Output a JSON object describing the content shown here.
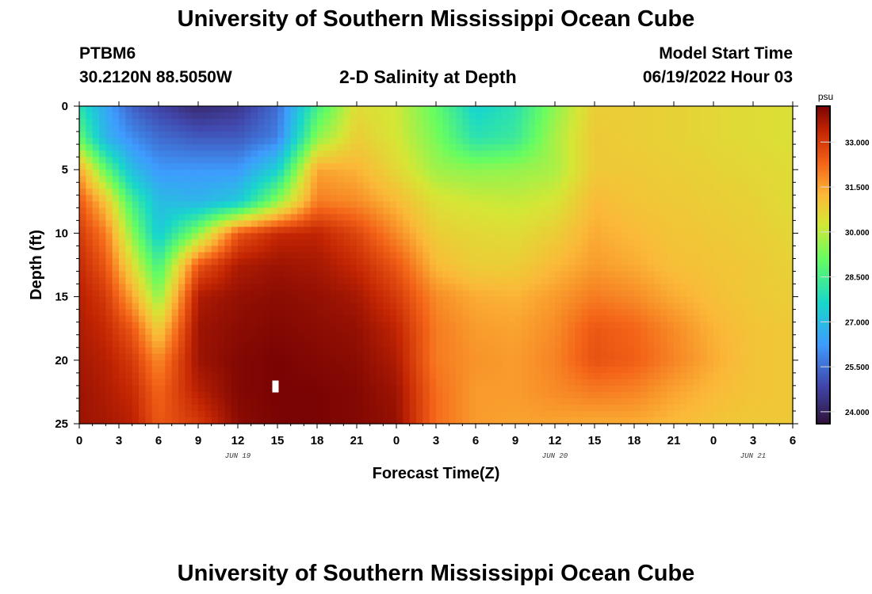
{
  "header": {
    "title": "University of Southern Mississippi Ocean Cube",
    "station": "PTBM6",
    "coords": "30.2120N  88.5050W",
    "plot_title": "2-D Salinity at Depth",
    "model_start_label": "Model Start Time",
    "model_start_value": "06/19/2022 Hour 03"
  },
  "footer": {
    "title": "University of Southern Mississippi Ocean Cube"
  },
  "chart_data": {
    "type": "heatmap",
    "title": "2-D Salinity at Depth",
    "xlabel": "Forecast Time(Z)",
    "ylabel": "Depth (ft)",
    "x_unit": "hours since 06/19/2022 00Z",
    "xlim": [
      0,
      54
    ],
    "ylim": [
      25,
      0
    ],
    "x_ticks": [
      0,
      3,
      6,
      9,
      12,
      15,
      18,
      21,
      24,
      27,
      30,
      33,
      36,
      39,
      42,
      45,
      48,
      51,
      54
    ],
    "x_tick_labels": [
      "0",
      "3",
      "6",
      "9",
      "12",
      "15",
      "18",
      "21",
      "0",
      "3",
      "6",
      "9",
      "12",
      "15",
      "18",
      "21",
      "0",
      "3",
      "6"
    ],
    "y_ticks": [
      0,
      5,
      10,
      15,
      20,
      25
    ],
    "y_tick_labels": [
      "0",
      "5",
      "10",
      "15",
      "20",
      "25"
    ],
    "date_labels": [
      {
        "x": 12,
        "label": "JUN 19"
      },
      {
        "x": 36,
        "label": "JUN 20"
      },
      {
        "x": 51,
        "label": "JUN 21"
      }
    ],
    "colorbar": {
      "unit": "psu",
      "min": 23.6,
      "max": 34.2,
      "ticks": [
        24.0,
        25.5,
        27.0,
        28.5,
        30.0,
        31.5,
        33.0
      ],
      "tick_labels": [
        "24.000",
        "25.500",
        "27.000",
        "28.500",
        "30.000",
        "31.500",
        "33.000"
      ]
    },
    "grid_times": [
      0,
      2,
      4,
      6,
      9,
      12,
      15,
      18,
      21,
      24,
      27,
      30,
      33,
      36,
      39,
      42,
      45,
      48,
      51,
      54
    ],
    "grid_depths": [
      0,
      2.5,
      5,
      7.5,
      10,
      12.5,
      15,
      17.5,
      20,
      22.5,
      25
    ],
    "salinity": [
      [
        28.0,
        26.5,
        25.3,
        24.8,
        24.2,
        24.5,
        25.5,
        28.5,
        30.5,
        30.2,
        29.0,
        27.5,
        28.0,
        29.5,
        30.8,
        30.8,
        30.7,
        30.6,
        30.5,
        30.4
      ],
      [
        29.0,
        26.8,
        26.0,
        25.5,
        25.2,
        25.2,
        25.8,
        29.5,
        30.8,
        30.3,
        29.3,
        28.0,
        28.3,
        29.8,
        30.9,
        30.8,
        30.7,
        30.6,
        30.5,
        30.4
      ],
      [
        31.5,
        29.0,
        27.0,
        26.2,
        26.2,
        26.2,
        27.5,
        31.5,
        31.3,
        30.6,
        29.7,
        29.5,
        29.6,
        29.8,
        30.9,
        30.9,
        30.8,
        30.7,
        30.6,
        30.5
      ],
      [
        32.5,
        31.0,
        28.5,
        27.0,
        26.8,
        27.3,
        29.5,
        32.0,
        31.8,
        31.2,
        30.4,
        30.2,
        30.1,
        30.3,
        31.2,
        31.0,
        30.9,
        30.8,
        30.7,
        30.5
      ],
      [
        33.0,
        32.0,
        29.5,
        27.3,
        29.5,
        32.5,
        33.3,
        33.4,
        32.8,
        31.8,
        30.8,
        30.6,
        30.5,
        30.8,
        31.4,
        31.2,
        31.0,
        30.9,
        30.8,
        30.6
      ],
      [
        33.3,
        32.5,
        30.5,
        28.5,
        32.5,
        33.6,
        33.8,
        33.7,
        33.3,
        32.5,
        31.2,
        30.8,
        30.8,
        31.2,
        31.6,
        31.4,
        31.1,
        31.0,
        30.9,
        30.7
      ],
      [
        33.5,
        33.0,
        31.5,
        29.5,
        33.6,
        33.9,
        34.0,
        33.9,
        33.7,
        33.0,
        31.8,
        31.4,
        31.3,
        31.6,
        32.0,
        31.8,
        31.4,
        31.1,
        30.9,
        30.8
      ],
      [
        33.6,
        33.3,
        32.5,
        30.8,
        33.8,
        34.0,
        34.1,
        34.0,
        33.9,
        33.4,
        32.0,
        31.6,
        31.5,
        31.8,
        32.5,
        32.3,
        31.8,
        31.3,
        31.0,
        30.9
      ],
      [
        33.7,
        33.5,
        33.0,
        31.8,
        33.8,
        34.1,
        34.2,
        34.1,
        34.0,
        33.6,
        32.0,
        31.7,
        31.6,
        31.9,
        32.6,
        32.4,
        31.9,
        31.4,
        31.0,
        30.9
      ],
      [
        33.8,
        33.6,
        33.3,
        32.3,
        33.5,
        34.1,
        34.2,
        34.2,
        34.1,
        33.8,
        32.2,
        31.6,
        31.6,
        31.8,
        32.0,
        31.9,
        31.5,
        31.2,
        31.0,
        30.9
      ],
      [
        33.8,
        33.7,
        33.5,
        32.5,
        33.0,
        34.0,
        34.2,
        34.2,
        34.1,
        33.9,
        32.2,
        31.6,
        31.5,
        31.5,
        31.4,
        31.4,
        31.2,
        31.0,
        30.9,
        30.9
      ]
    ]
  }
}
